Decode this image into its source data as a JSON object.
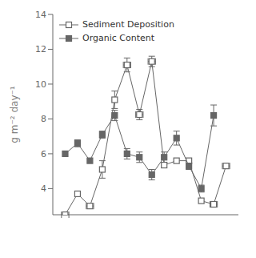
{
  "chart_data": {
    "type": "line",
    "ylabel": "g m⁻² day⁻¹",
    "ylim": [
      2.5,
      14
    ],
    "yticks": [
      4,
      6,
      8,
      10,
      12,
      14
    ],
    "xlim": [
      0,
      15
    ],
    "tick_labels": "y",
    "grid": false,
    "legend": "upper left",
    "series": [
      {
        "name": "Sediment Deposition",
        "color": "#666666",
        "marker": "open_square",
        "x": [
          1,
          2,
          3,
          4,
          5,
          6,
          7,
          8,
          9,
          10,
          11,
          12,
          13,
          14
        ],
        "values": [
          2.5,
          3.7,
          3.0,
          5.1,
          9.1,
          11.1,
          8.25,
          11.3,
          5.35,
          5.6,
          5.6,
          3.3,
          3.1,
          5.3
        ],
        "xerr": [
          0.3,
          0.0,
          0.3,
          0.0,
          0.0,
          0.3,
          0.3,
          0.3,
          0.0,
          0.0,
          0.0,
          0.0,
          0.3,
          0.3
        ],
        "yerr": [
          0.0,
          0.0,
          0.0,
          0.5,
          0.5,
          0.4,
          0.3,
          0.3,
          0.0,
          0.0,
          0.0,
          0.0,
          0.0,
          0.0
        ]
      },
      {
        "name": "Organic Content",
        "color": "#666666",
        "marker": "square",
        "x": [
          1,
          2,
          3,
          4,
          5,
          6,
          7,
          8,
          9,
          10,
          11,
          12,
          13
        ],
        "values": [
          6.0,
          6.6,
          5.6,
          7.1,
          8.2,
          6.0,
          5.8,
          4.8,
          5.8,
          6.9,
          5.3,
          4.0,
          8.2
        ],
        "yerr": [
          0.0,
          0.2,
          0.0,
          0.2,
          0.3,
          0.3,
          0.3,
          0.3,
          0.3,
          0.4,
          0.2,
          0.2,
          0.6
        ]
      }
    ]
  }
}
